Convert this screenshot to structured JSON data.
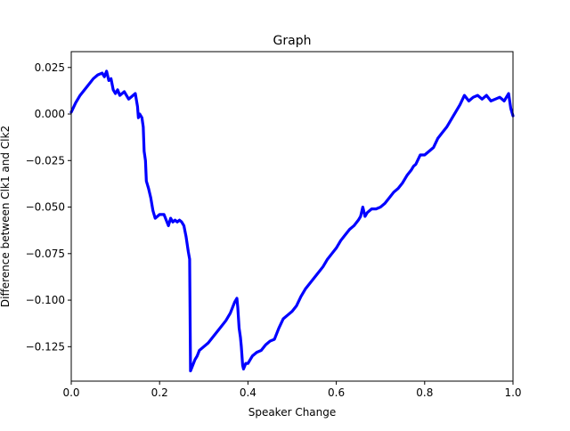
{
  "chart_data": {
    "type": "line",
    "title": "Graph",
    "xlabel": "Speaker Change",
    "ylabel": "Difference between Clk1 and Clk2",
    "xlim": [
      0,
      1
    ],
    "ylim": [
      -0.1435,
      0.0335
    ],
    "grid": false,
    "x_ticks": [
      0.0,
      0.2,
      0.4,
      0.6,
      0.8,
      1.0
    ],
    "x_tick_labels": [
      "0.0",
      "0.2",
      "0.4",
      "0.6",
      "0.8",
      "1.0"
    ],
    "y_ticks": [
      0.025,
      0.0,
      -0.025,
      -0.05,
      -0.075,
      -0.1,
      -0.125
    ],
    "y_tick_labels": [
      "0.025",
      "0.000",
      "−0.025",
      "−0.050",
      "−0.075",
      "−0.100",
      "−0.125"
    ],
    "series": [
      {
        "color": "#0000ff",
        "x": [
          0.0,
          0.01,
          0.02,
          0.03,
          0.04,
          0.05,
          0.06,
          0.07,
          0.075,
          0.08,
          0.085,
          0.09,
          0.095,
          0.1,
          0.105,
          0.11,
          0.12,
          0.13,
          0.14,
          0.145,
          0.15,
          0.152,
          0.155,
          0.16,
          0.163,
          0.165,
          0.168,
          0.17,
          0.175,
          0.18,
          0.185,
          0.19,
          0.2,
          0.21,
          0.22,
          0.225,
          0.23,
          0.235,
          0.24,
          0.245,
          0.25,
          0.255,
          0.26,
          0.265,
          0.268,
          0.27,
          0.275,
          0.28,
          0.285,
          0.29,
          0.3,
          0.31,
          0.32,
          0.33,
          0.34,
          0.35,
          0.36,
          0.365,
          0.37,
          0.375,
          0.377,
          0.38,
          0.383,
          0.385,
          0.388,
          0.39,
          0.395,
          0.4,
          0.405,
          0.41,
          0.42,
          0.43,
          0.44,
          0.45,
          0.46,
          0.47,
          0.48,
          0.49,
          0.5,
          0.51,
          0.52,
          0.53,
          0.54,
          0.55,
          0.56,
          0.57,
          0.58,
          0.59,
          0.6,
          0.61,
          0.62,
          0.63,
          0.64,
          0.65,
          0.655,
          0.66,
          0.665,
          0.67,
          0.68,
          0.69,
          0.7,
          0.71,
          0.72,
          0.73,
          0.74,
          0.75,
          0.76,
          0.77,
          0.775,
          0.78,
          0.79,
          0.8,
          0.81,
          0.82,
          0.83,
          0.84,
          0.85,
          0.86,
          0.87,
          0.88,
          0.89,
          0.9,
          0.91,
          0.92,
          0.93,
          0.94,
          0.95,
          0.96,
          0.97,
          0.98,
          0.99,
          0.995,
          1.0
        ],
        "y": [
          0.001,
          0.006,
          0.01,
          0.013,
          0.016,
          0.019,
          0.021,
          0.022,
          0.02,
          0.023,
          0.018,
          0.019,
          0.013,
          0.011,
          0.013,
          0.01,
          0.012,
          0.008,
          0.01,
          0.011,
          0.004,
          -0.002,
          0.0,
          -0.002,
          -0.007,
          -0.02,
          -0.025,
          -0.036,
          -0.04,
          -0.045,
          -0.052,
          -0.056,
          -0.054,
          -0.054,
          -0.06,
          -0.056,
          -0.058,
          -0.057,
          -0.058,
          -0.057,
          -0.058,
          -0.06,
          -0.066,
          -0.074,
          -0.078,
          -0.138,
          -0.135,
          -0.132,
          -0.13,
          -0.127,
          -0.125,
          -0.123,
          -0.12,
          -0.117,
          -0.114,
          -0.111,
          -0.107,
          -0.104,
          -0.101,
          -0.099,
          -0.104,
          -0.115,
          -0.12,
          -0.125,
          -0.135,
          -0.137,
          -0.134,
          -0.134,
          -0.132,
          -0.13,
          -0.128,
          -0.127,
          -0.124,
          -0.122,
          -0.121,
          -0.115,
          -0.11,
          -0.108,
          -0.106,
          -0.103,
          -0.098,
          -0.094,
          -0.091,
          -0.088,
          -0.085,
          -0.082,
          -0.078,
          -0.075,
          -0.072,
          -0.068,
          -0.065,
          -0.062,
          -0.06,
          -0.057,
          -0.055,
          -0.05,
          -0.055,
          -0.053,
          -0.051,
          -0.051,
          -0.05,
          -0.048,
          -0.045,
          -0.042,
          -0.04,
          -0.037,
          -0.033,
          -0.03,
          -0.028,
          -0.027,
          -0.022,
          -0.022,
          -0.02,
          -0.018,
          -0.013,
          -0.01,
          -0.007,
          -0.003,
          0.001,
          0.005,
          0.01,
          0.007,
          0.009,
          0.01,
          0.008,
          0.01,
          0.007,
          0.008,
          0.009,
          0.007,
          0.011,
          0.003,
          -0.001
        ]
      }
    ]
  }
}
